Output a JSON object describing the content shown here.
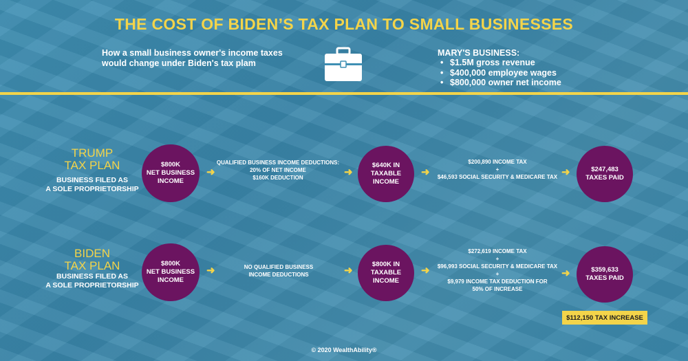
{
  "title": "THE COST OF BIDEN’S TAX PLAN TO SMALL BUSINESSES",
  "subtitle_line1": "How a small business owner's income taxes",
  "subtitle_line2": "would change under Biden's tax plam",
  "icons": {
    "briefcase": "briefcase-icon",
    "arrow": "arrow-right-icon"
  },
  "business": {
    "title": "MARY'S BUSINESS:",
    "items": [
      "$1.5M gross revenue",
      "$400,000 employee wages",
      "$800,000 owner net income"
    ]
  },
  "colors": {
    "background": "#3f8fb3",
    "accent": "#f3d44a",
    "circle": "#6b1460"
  },
  "trump": {
    "name_line1": "TRUMP",
    "name_line2": "TAX PLAN",
    "desc_line1": "BUSINESS FILED AS",
    "desc_line2": "A SOLE PROPRIETORSHIP",
    "start_line1": "$800K",
    "start_line2": "NET BUSINESS",
    "start_line3": "INCOME",
    "deduction_line1": "QUALIFIED BUSINESS INCOME DEDUCTIONS:",
    "deduction_line2": "20% OF NET INCOME",
    "deduction_line3": "$160K DEDUCTION",
    "taxable_line1": "$640K IN",
    "taxable_line2": "TAXABLE INCOME",
    "tax_line1": "$200,890 INCOME TAX",
    "tax_plus": "+",
    "tax_line2": "$46,593 SOCIAL SECURITY &  MEDICARE TAX",
    "paid_line1": "$247,483",
    "paid_line2": "TAXES PAID"
  },
  "biden": {
    "name_line1": "BIDEN",
    "name_line2": "TAX PLAN",
    "desc_line1": "BUSINESS FILED AS",
    "desc_line2": "A SOLE PROPRIETORSHIP",
    "start_line1": "$800K",
    "start_line2": "NET BUSINESS",
    "start_line3": "INCOME",
    "deduction_line1": "NO QUALIFIED BUSINESS",
    "deduction_line2": "INCOME DEDUCTIONS",
    "taxable_line1": "$800K IN",
    "taxable_line2": "TAXABLE INCOME",
    "tax_line1": "$272,619 INCOME TAX",
    "tax_plus1": "+",
    "tax_line2": "$96,993 SOCIAL SECURITY &  MEDICARE TAX",
    "tax_plus2": "+",
    "tax_line3": "$9,979 INCOME TAX DEDUCTION FOR",
    "tax_line4": "50% OF INCREASE",
    "paid_line1": "$359,633",
    "paid_line2": "TAXES PAID"
  },
  "increase_badge": "$112,150 TAX INCREASE",
  "footer": "© 2020 WealthAbility®"
}
